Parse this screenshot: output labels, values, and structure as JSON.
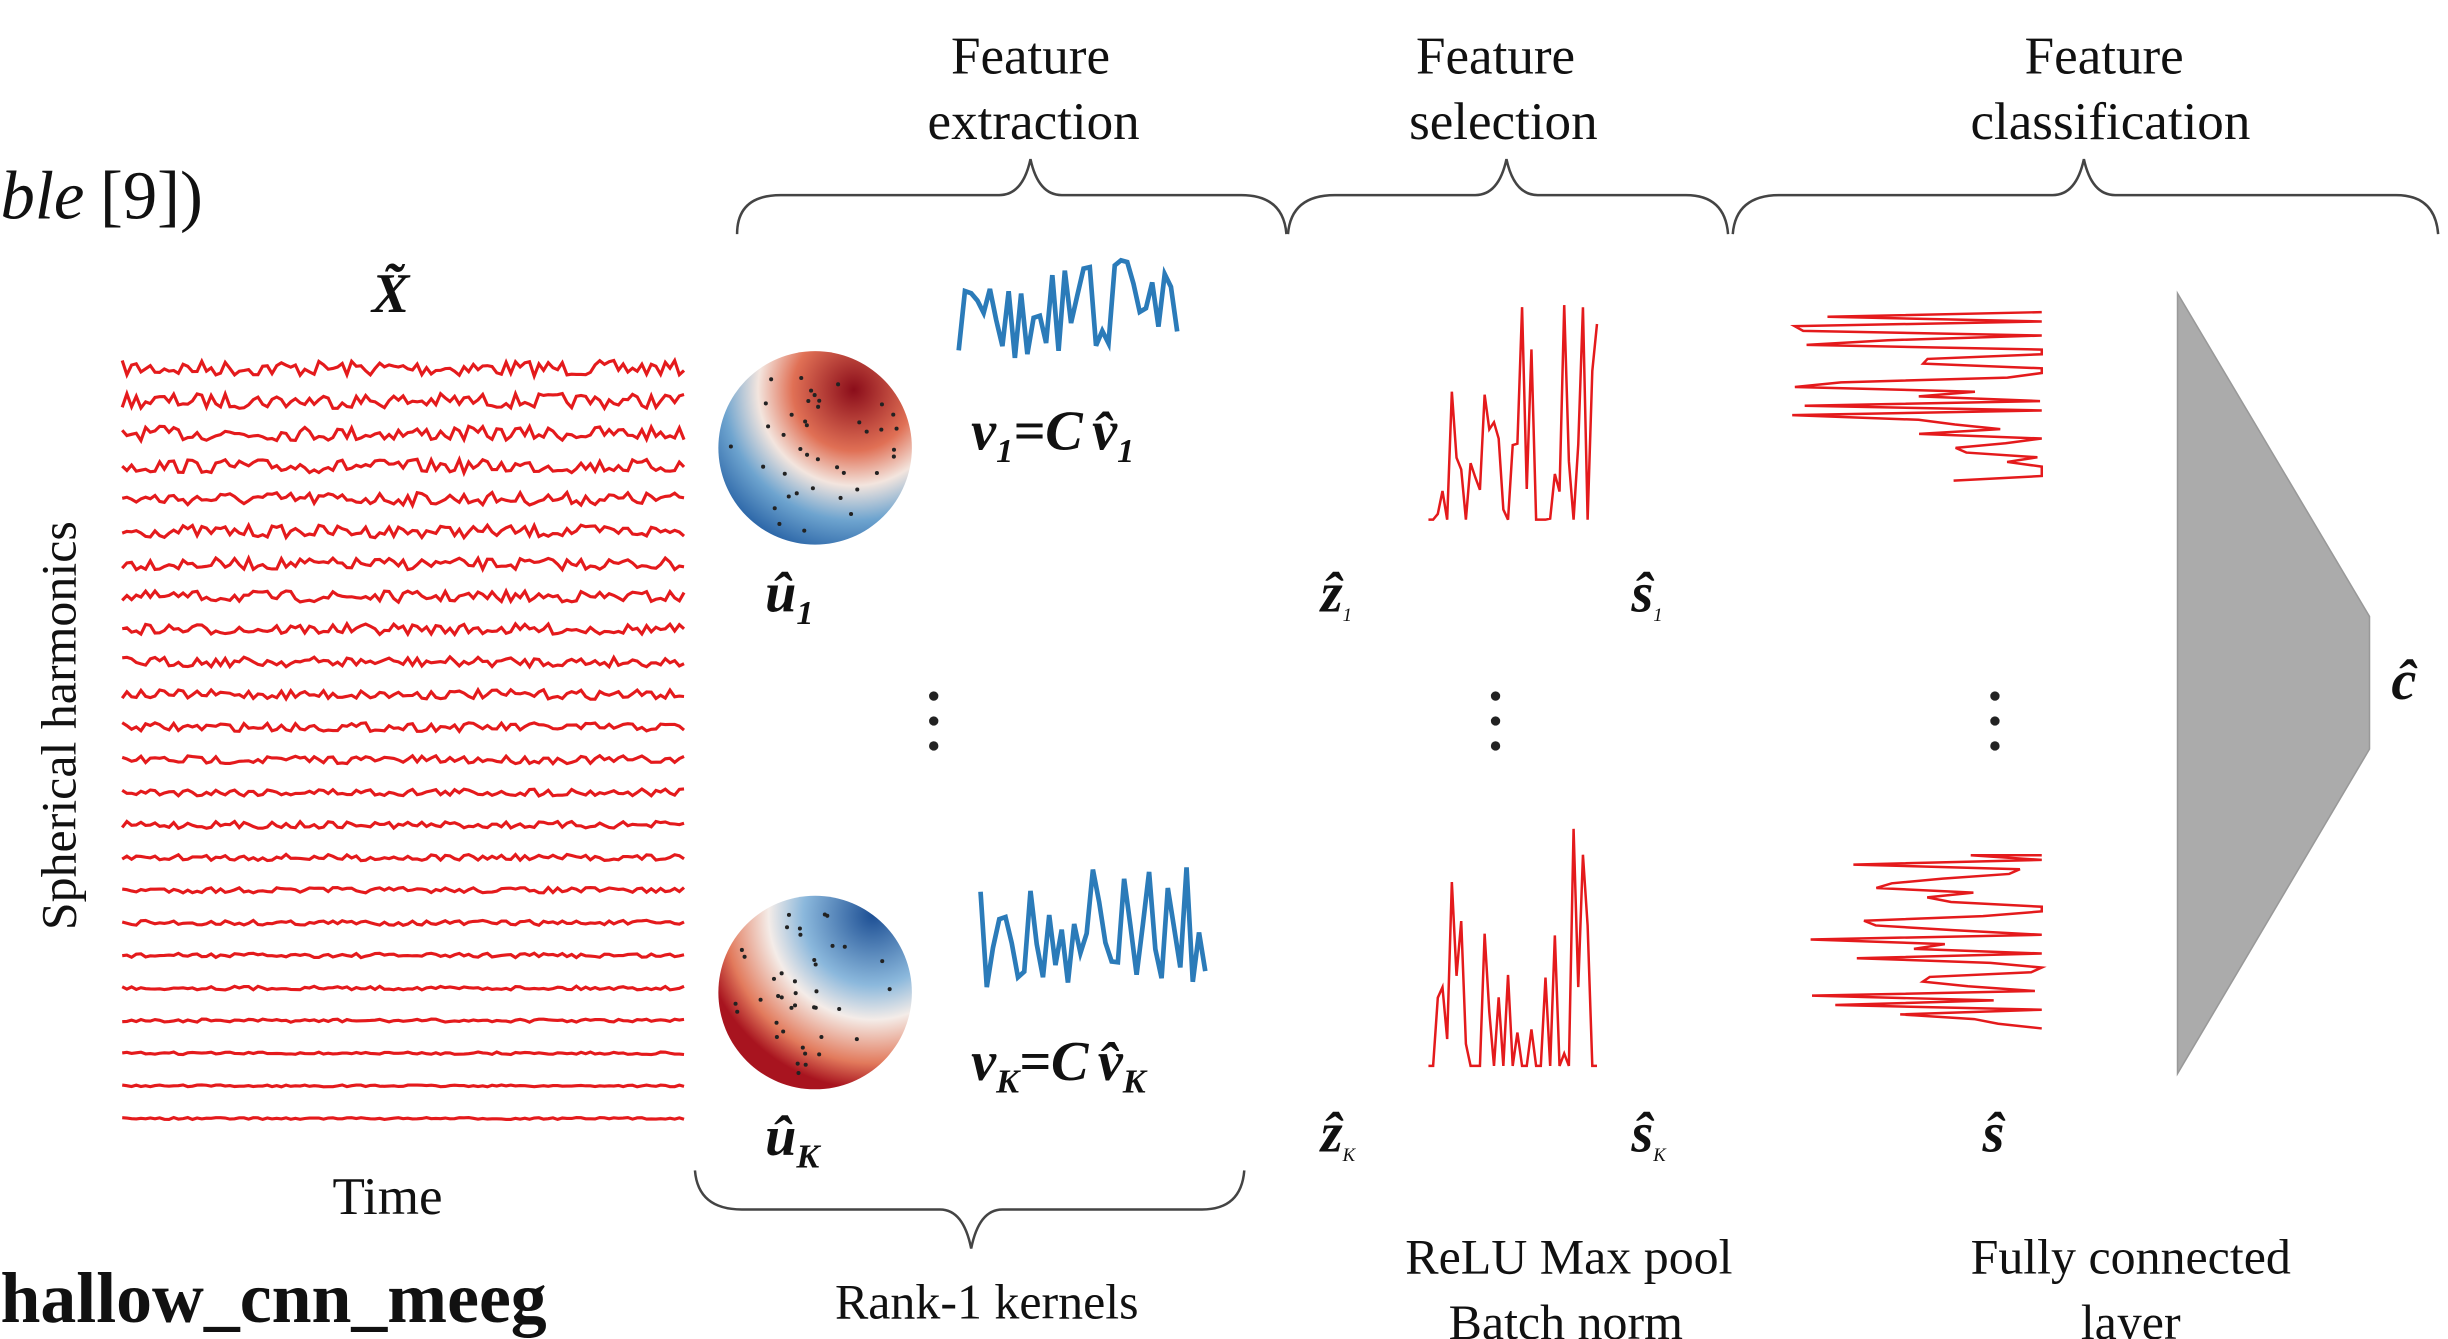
{
  "caption_fragment": {
    "italic": "ble",
    "rest": "[9])"
  },
  "signal": {
    "symbol": "X̃",
    "y_label": "Spherical harmonics",
    "x_label": "Time",
    "name": "hallow_cnn_meeg"
  },
  "stages": [
    {
      "lines": [
        "Feature",
        "extraction"
      ]
    },
    {
      "lines": [
        "Feature",
        "selection"
      ]
    },
    {
      "lines": [
        "Feature",
        "classification"
      ]
    }
  ],
  "kernels": {
    "spatial_1": {
      "base": "û",
      "sub": "1"
    },
    "spatial_K": {
      "base": "û",
      "sub": "K"
    },
    "temporal_1": {
      "base": "v",
      "sub": "1",
      "eq": "=",
      "coef": "C",
      "rhs": "v̂",
      "rhs_sub": "1"
    },
    "temporal_K": {
      "base": "v",
      "sub": "K",
      "eq": "=",
      "coef": "C",
      "rhs": "v̂",
      "rhs_sub": "K"
    },
    "caption": "Rank-1 kernels"
  },
  "selection": {
    "z_1": {
      "base": "ẑ",
      "sub": "1"
    },
    "s_1": {
      "base": "ŝ",
      "sub": "1"
    },
    "z_K": {
      "base": "ẑ",
      "sub": "K"
    },
    "s_K": {
      "base": "ŝ",
      "sub": "K"
    },
    "caption": [
      "ReLU Max pool",
      "Batch norm"
    ]
  },
  "classification": {
    "s": "ŝ",
    "c": "ĉ",
    "caption": [
      "Fully connected",
      "layer"
    ]
  }
}
